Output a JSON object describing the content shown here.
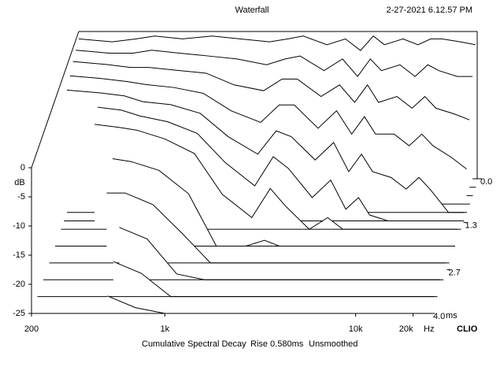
{
  "chart_data": {
    "type": "waterfall",
    "title": "Waterfall",
    "date": "2-27-2021 6.12.57 PM",
    "caption": [
      "Cumulative Spectral Decay",
      "Rise 0.580ms",
      "Unsmoothed"
    ],
    "brand": "CLIO",
    "xlabel": "Hz",
    "ylabel": "dB",
    "zlabel": "ms",
    "log_x": true,
    "color": "#000000",
    "xlim": [
      200,
      25000
    ],
    "xticks": [
      200,
      {
        "value": 1000,
        "label": "1k"
      },
      {
        "value": 10000,
        "label": "10k"
      },
      {
        "value": 20000,
        "label": "20k"
      }
    ],
    "ylim": [
      -25,
      0
    ],
    "yticks": [
      0,
      -5,
      -10,
      -15,
      -20,
      -25
    ],
    "zlim": [
      0,
      4
    ],
    "zticks": [
      {
        "value": 0,
        "label": "0.0"
      },
      1.3,
      2.7,
      {
        "value": 4,
        "label": "4.0"
      }
    ],
    "x": [
      200,
      300,
      400,
      500,
      700,
      1000,
      1400,
      2000,
      2500,
      3000,
      4000,
      5000,
      6000,
      7000,
      8000,
      10000,
      12000,
      14000,
      16000,
      20000,
      24000
    ],
    "z": [
      0,
      0.25,
      0.5,
      0.75,
      1.0,
      1.25,
      1.5,
      2.0,
      2.5,
      3.0,
      3.5,
      4.0
    ],
    "series": [
      {
        "values": [
          -1,
          -1.5,
          -1,
          -0.5,
          -1,
          -0.5,
          -1,
          -1.5,
          -1,
          -0.5,
          -2,
          -1,
          -3,
          -0.5,
          -2,
          -1,
          -2,
          -1,
          -1,
          -1.5,
          -2
        ]
      },
      {
        "values": [
          -1.5,
          -2,
          -2,
          -1.5,
          -2,
          -2.5,
          -3,
          -4,
          -3,
          -2.5,
          -5,
          -3,
          -6,
          -3,
          -5,
          -4,
          -6,
          -4,
          -5,
          -6,
          -6
        ]
      },
      {
        "values": [
          -2,
          -2.5,
          -3,
          -3,
          -3.5,
          -4,
          -6,
          -7,
          -5,
          -5,
          -8,
          -6,
          -9,
          -6,
          -9,
          -8,
          -10,
          -8,
          -10,
          -11,
          -12
        ]
      },
      {
        "values": [
          -3,
          -3.5,
          -4,
          -4.5,
          -5,
          -6,
          -9,
          -11,
          -8,
          -8,
          -12,
          -9,
          -13,
          -10,
          -13,
          -13,
          -15,
          -13,
          -15,
          -17,
          -19
        ]
      },
      {
        "values": [
          -4,
          -4.5,
          -5,
          -6,
          -6.5,
          -8,
          -12,
          -15,
          -11,
          -12,
          -16,
          -13,
          -18,
          -15,
          -18,
          -19,
          -21,
          -19,
          -21,
          -25,
          -25
        ]
      },
      {
        "values": [
          null,
          -5.5,
          -6,
          -7,
          -8,
          -10,
          -15,
          -19,
          -14,
          -16,
          -21,
          -18,
          -23,
          -21,
          -24,
          -25,
          -25,
          -25,
          -25,
          -25,
          -25
        ]
      },
      {
        "values": [
          null,
          -7,
          -7.5,
          -8,
          -9.5,
          -12,
          -19,
          -23,
          -18,
          -21,
          -25,
          -23,
          -25,
          -25,
          -25,
          -25,
          -25,
          -25,
          -25,
          -25,
          -25
        ]
      },
      {
        "values": [
          null,
          null,
          -10,
          -10.5,
          -12,
          -16,
          -25,
          -25,
          -24,
          -25,
          -25,
          -25,
          -25,
          -25,
          -25,
          -25,
          -25,
          -25,
          -25,
          -25,
          -25
        ]
      },
      {
        "values": [
          null,
          null,
          -13,
          -13,
          -15,
          -20,
          -25,
          -25,
          -25,
          -25,
          -25,
          -25,
          -25,
          -25,
          -25,
          -25,
          -25,
          -25,
          -25,
          -25,
          -25
        ]
      },
      {
        "values": [
          null,
          null,
          null,
          -16,
          -18,
          -24,
          -25,
          -25,
          -25,
          -25,
          -25,
          -25,
          -25,
          -25,
          -25,
          -25,
          -25,
          -25,
          -25,
          -25,
          -25
        ]
      },
      {
        "values": [
          null,
          null,
          null,
          -19,
          -21,
          -25,
          -25,
          -25,
          -25,
          -25,
          -25,
          -25,
          -25,
          -25,
          -25,
          -25,
          -25,
          -25,
          -25,
          -25,
          -25
        ]
      },
      {
        "values": [
          null,
          null,
          null,
          -22,
          -24,
          -25,
          -25,
          -25,
          -25,
          -25,
          -25,
          -25,
          -25,
          -25,
          -25,
          -25,
          -25,
          -25,
          -25,
          -25,
          -25
        ]
      }
    ]
  }
}
